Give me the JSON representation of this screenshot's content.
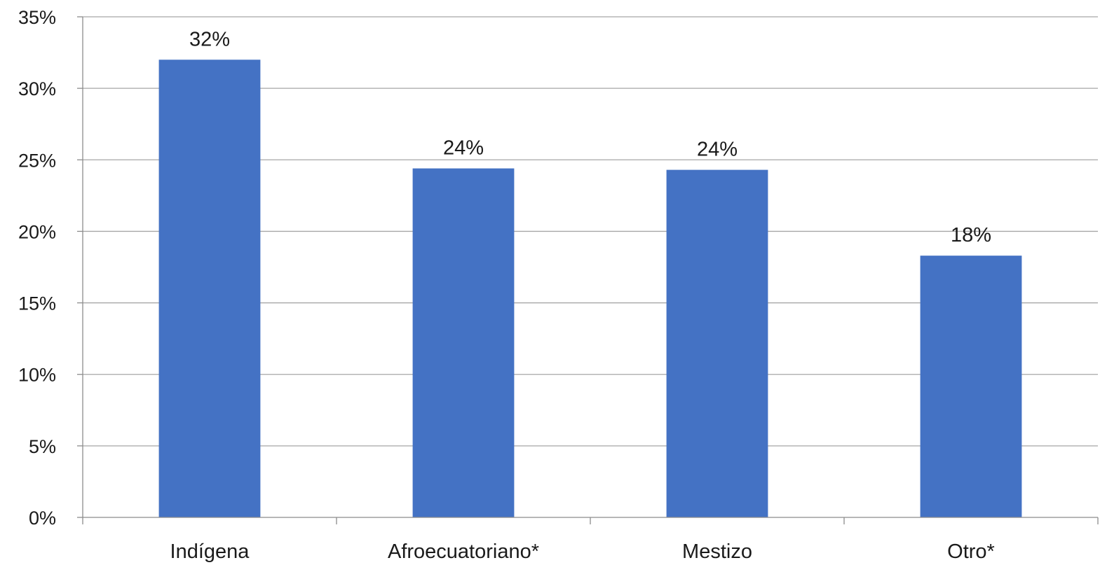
{
  "chart_data": {
    "type": "bar",
    "title": "",
    "xlabel": "",
    "ylabel": "",
    "categories": [
      "Indígena",
      "Afroecuatoriano*",
      "Mestizo",
      "Otro*"
    ],
    "values": [
      32,
      24.4,
      24.3,
      18.3
    ],
    "data_labels": [
      "32%",
      "24%",
      "24%",
      "18%"
    ],
    "ylim": [
      0,
      35
    ],
    "yticks": [
      0,
      5,
      10,
      15,
      20,
      25,
      30,
      35
    ],
    "ytick_labels": [
      "0%",
      "5%",
      "10%",
      "15%",
      "20%",
      "25%",
      "30%",
      "35%"
    ],
    "y_unit_suffix": "%",
    "grid": true,
    "legend": "none",
    "bar_color": "#4472C4",
    "grid_color": "#a6a6a6",
    "axis_color": "#8c8c8c"
  }
}
